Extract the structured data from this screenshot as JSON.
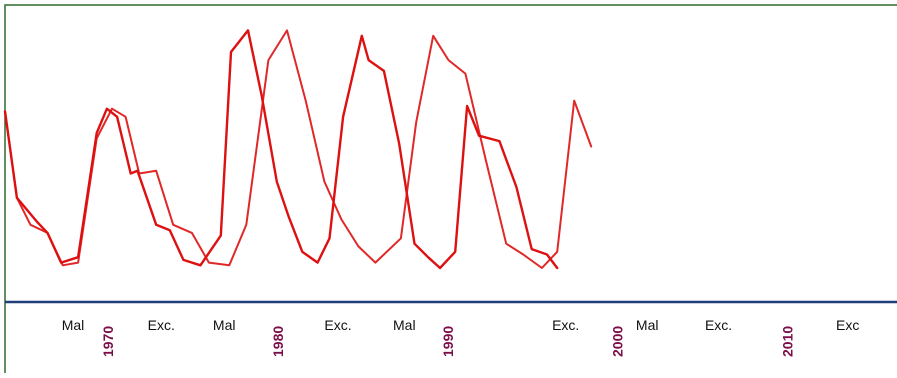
{
  "chart_data": {
    "type": "line",
    "title": "",
    "xlabel": "",
    "ylabel": "",
    "xlim": [
      1964,
      2016.5
    ],
    "ylim": [
      0,
      100
    ],
    "grid": false,
    "colors": {
      "frame": "#2e6b2e",
      "baseline": "#1f3f7a",
      "line": "#dd1111",
      "year_label": "#7a0f4a",
      "phase_label": "#111111"
    },
    "series": [
      {
        "x": [
          1964.0,
          1964.7,
          1965.9,
          1966.5,
          1967.3,
          1968.3,
          1969.4,
          1970.0,
          1970.6,
          1971.4,
          1971.8,
          1972.9,
          1973.7,
          1974.5,
          1975.5,
          1976.7,
          1977.3,
          1978.3,
          1979.1,
          1980.0,
          1980.7,
          1981.5,
          1982.4,
          1983.1,
          1983.9,
          1985.0,
          1985.4,
          1986.3,
          1987.2,
          1988.1,
          1988.9,
          1989.6,
          1990.5,
          1991.2,
          1991.9,
          1993.1,
          1994.1,
          1995.0,
          1995.9,
          1996.5
        ],
        "y": [
          68,
          36,
          27,
          23,
          12,
          14,
          60,
          69,
          66,
          45,
          46,
          26,
          24,
          13,
          11,
          22,
          90,
          98,
          74,
          42,
          29,
          16,
          12,
          21,
          66,
          96,
          87,
          83,
          56,
          19,
          14,
          10,
          16,
          70,
          59,
          57,
          40,
          17,
          15,
          10
        ]
      },
      {
        "x": [
          1964.0,
          1964.7,
          1965.5,
          1966.5,
          1967.4,
          1968.3,
          1969.4,
          1970.3,
          1971.1,
          1971.9,
          1972.9,
          1973.9,
          1975.0,
          1976.0,
          1977.2,
          1978.2,
          1979.5,
          1980.6,
          1981.7,
          1982.8,
          1983.8,
          1984.8,
          1985.8,
          1987.3,
          1988.2,
          1989.2,
          1990.1,
          1991.1,
          1992.3,
          1993.5,
          1994.5,
          1995.6,
          1996.5,
          1997.5,
          1998.5
        ],
        "y": [
          68,
          36,
          26,
          23,
          11,
          12,
          58,
          69,
          66,
          45,
          46,
          26,
          23,
          12,
          11,
          26,
          87,
          98,
          72,
          42,
          28,
          18,
          12,
          21,
          64,
          96,
          87,
          82,
          50,
          19,
          15,
          10,
          16,
          72,
          55
        ]
      }
    ],
    "year_ticks": [
      {
        "year": 1970,
        "label": "1970"
      },
      {
        "year": 1980,
        "label": "1980"
      },
      {
        "year": 1990,
        "label": "1990"
      },
      {
        "year": 2000,
        "label": "2000"
      },
      {
        "year": 2010,
        "label": "2010"
      }
    ],
    "phase_labels": [
      {
        "year": 1968.0,
        "label": "Mal"
      },
      {
        "year": 1973.2,
        "label": "Exc."
      },
      {
        "year": 1976.9,
        "label": "Mal"
      },
      {
        "year": 1983.6,
        "label": "Exc."
      },
      {
        "year": 1987.5,
        "label": "Mal"
      },
      {
        "year": 1997.0,
        "label": "Exc."
      },
      {
        "year": 2001.8,
        "label": "Mal"
      },
      {
        "year": 2006.0,
        "label": "Exc."
      },
      {
        "year": 2013.6,
        "label": "Exc"
      }
    ]
  }
}
